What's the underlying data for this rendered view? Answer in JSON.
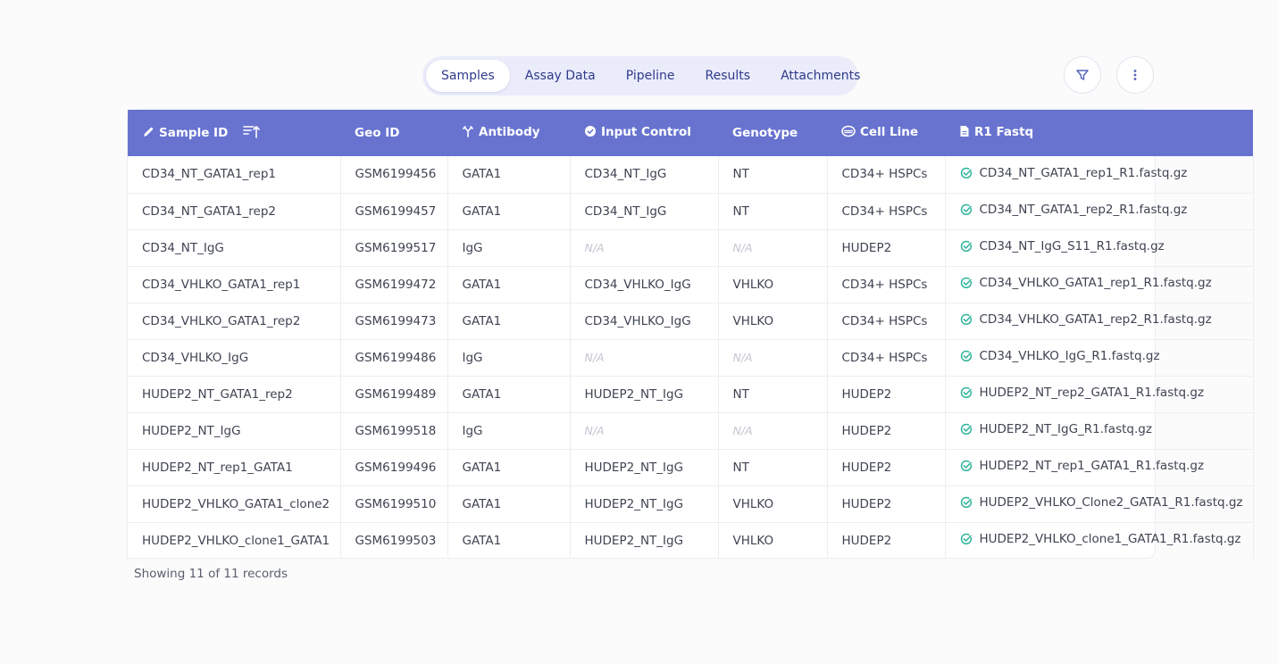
{
  "tabs": [
    "Samples",
    "Assay Data",
    "Pipeline",
    "Results",
    "Attachments"
  ],
  "active_tab": 0,
  "columns": [
    "Sample ID",
    "Geo ID",
    "Antibody",
    "Input Control",
    "Genotype",
    "Cell Line",
    "R1 Fastq"
  ],
  "rows": [
    [
      "CD34_NT_GATA1_rep1",
      "GSM6199456",
      "GATA1",
      "CD34_NT_IgG",
      "NT",
      "CD34+ HSPCs",
      "CD34_NT_GATA1_rep1_R1.fastq.gz"
    ],
    [
      "CD34_NT_GATA1_rep2",
      "GSM6199457",
      "GATA1",
      "CD34_NT_IgG",
      "NT",
      "CD34+ HSPCs",
      "CD34_NT_GATA1_rep2_R1.fastq.gz"
    ],
    [
      "CD34_NT_IgG",
      "GSM6199517",
      "IgG",
      "N/A",
      "N/A",
      "HUDEP2",
      "CD34_NT_IgG_S11_R1.fastq.gz"
    ],
    [
      "CD34_VHLKO_GATA1_rep1",
      "GSM6199472",
      "GATA1",
      "CD34_VHLKO_IgG",
      "VHLKO",
      "CD34+ HSPCs",
      "CD34_VHLKO_GATA1_rep1_R1.fastq.gz"
    ],
    [
      "CD34_VHLKO_GATA1_rep2",
      "GSM6199473",
      "GATA1",
      "CD34_VHLKO_IgG",
      "VHLKO",
      "CD34+ HSPCs",
      "CD34_VHLKO_GATA1_rep2_R1.fastq.gz"
    ],
    [
      "CD34_VHLKO_IgG",
      "GSM6199486",
      "IgG",
      "N/A",
      "N/A",
      "CD34+ HSPCs",
      "CD34_VHLKO_IgG_R1.fastq.gz"
    ],
    [
      "HUDEP2_NT_GATA1_rep2",
      "GSM6199489",
      "GATA1",
      "HUDEP2_NT_IgG",
      "NT",
      "HUDEP2",
      "HUDEP2_NT_rep2_GATA1_R1.fastq.gz"
    ],
    [
      "HUDEP2_NT_IgG",
      "GSM6199518",
      "IgG",
      "N/A",
      "N/A",
      "HUDEP2",
      "HUDEP2_NT_IgG_R1.fastq.gz"
    ],
    [
      "HUDEP2_NT_rep1_GATA1",
      "GSM6199496",
      "GATA1",
      "HUDEP2_NT_IgG",
      "NT",
      "HUDEP2",
      "HUDEP2_NT_rep1_GATA1_R1.fastq.gz"
    ],
    [
      "HUDEP2_VHLKO_GATA1_clone2",
      "GSM6199510",
      "GATA1",
      "HUDEP2_NT_IgG",
      "VHLKO",
      "HUDEP2",
      "HUDEP2_VHLKO_Clone2_GATA1_R1.fastq.gz"
    ],
    [
      "HUDEP2_VHLKO_clone1_GATA1",
      "GSM6199503",
      "GATA1",
      "HUDEP2_NT_IgG",
      "VHLKO",
      "HUDEP2",
      "HUDEP2_VHLKO_clone1_GATA1_R1.fastq.gz"
    ]
  ],
  "footer": "Showing 11 of 11 records",
  "colors": {
    "accent": "#6873d0",
    "tab_text": "#2f3b8c",
    "check": "#2bb39a"
  },
  "icons": [
    "pencil-icon",
    "sort-ascending-icon",
    "antibody-icon",
    "check-circle-icon",
    "cell-line-icon",
    "file-icon",
    "filter-icon",
    "more-vertical-icon"
  ]
}
